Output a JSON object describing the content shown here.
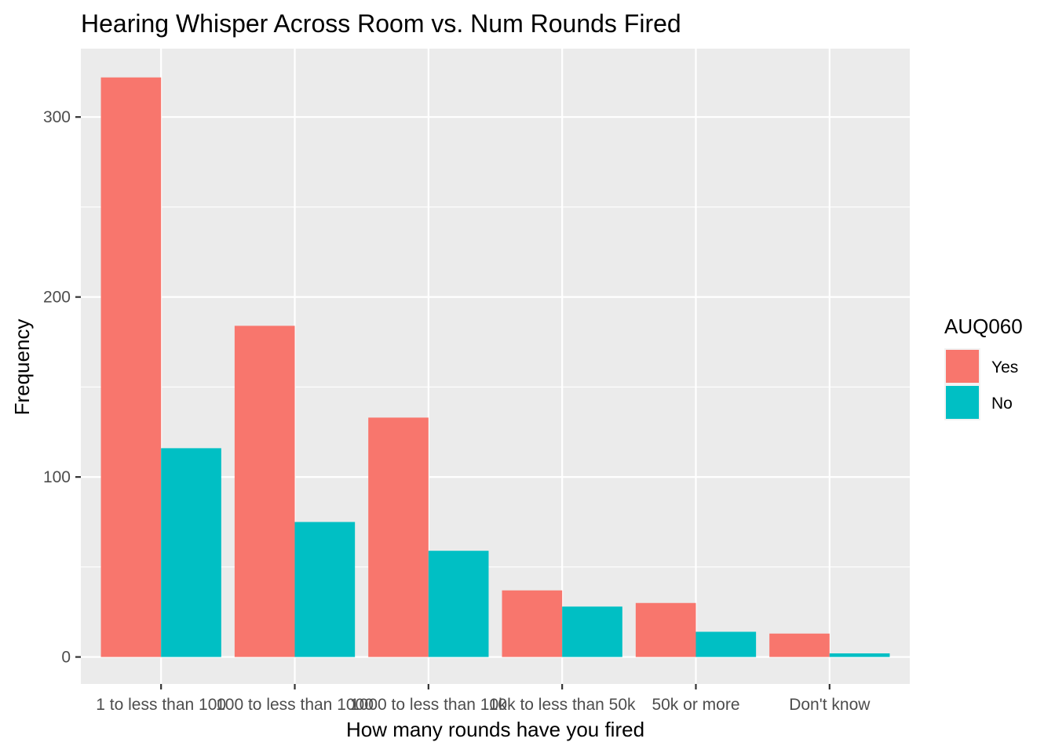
{
  "chart_data": {
    "type": "bar",
    "title": "Hearing Whisper Across Room vs. Num Rounds Fired",
    "xlabel": "How many rounds have you fired",
    "ylabel": "Frequency",
    "categories": [
      "1 to less than 100",
      "100 to less than 1000",
      "1000 to less than 10k",
      "10k to less than 50k",
      "50k or more",
      "Don't know"
    ],
    "series": [
      {
        "name": "Yes",
        "color": "#F8766D",
        "values": [
          322,
          184,
          133,
          37,
          30,
          13
        ]
      },
      {
        "name": "No",
        "color": "#00BFC4",
        "values": [
          116,
          75,
          59,
          28,
          14,
          2
        ]
      }
    ],
    "ylim": [
      -15,
      338
    ],
    "yticks": [
      0,
      100,
      200,
      300
    ],
    "grid": true,
    "legend": {
      "title": "AUQ060",
      "position": "right"
    },
    "panel_background": "#EBEBEB",
    "grid_color": "#FFFFFF"
  }
}
